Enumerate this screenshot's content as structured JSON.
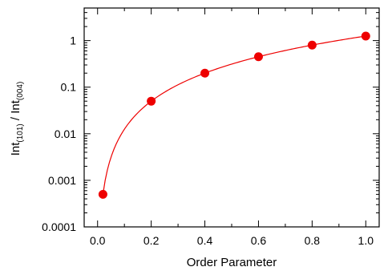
{
  "chart_data": {
    "type": "scatter",
    "title": "",
    "xlabel": "Order Parameter",
    "ylabel": {
      "base": "Int",
      "num_sub": "(101)",
      "sep": " / ",
      "den_sub": "(004)"
    },
    "xlim": [
      -0.05,
      1.05
    ],
    "ylim": [
      0.0001,
      5
    ],
    "y_scale": "log",
    "grid": false,
    "x_ticks": [
      {
        "v": 0.0,
        "label": "0.0"
      },
      {
        "v": 0.2,
        "label": "0.2"
      },
      {
        "v": 0.4,
        "label": "0.4"
      },
      {
        "v": 0.6,
        "label": "0.6"
      },
      {
        "v": 0.8,
        "label": "0.8"
      },
      {
        "v": 1.0,
        "label": "1.0"
      }
    ],
    "y_ticks": [
      {
        "v": 0.0001,
        "label": "0.0001"
      },
      {
        "v": 0.001,
        "label": "0.001"
      },
      {
        "v": 0.01,
        "label": "0.01"
      },
      {
        "v": 0.1,
        "label": "0.1"
      },
      {
        "v": 1,
        "label": "1"
      }
    ],
    "series": [
      {
        "points": [
          {
            "x": 0.02,
            "y": 0.0005
          },
          {
            "x": 0.2,
            "y": 0.05
          },
          {
            "x": 0.4,
            "y": 0.2
          },
          {
            "x": 0.6,
            "y": 0.45
          },
          {
            "x": 0.8,
            "y": 0.8
          },
          {
            "x": 1.0,
            "y": 1.25
          }
        ],
        "fit_curve": "y = 1.25 * x^2",
        "color": "#ee0000"
      }
    ]
  }
}
